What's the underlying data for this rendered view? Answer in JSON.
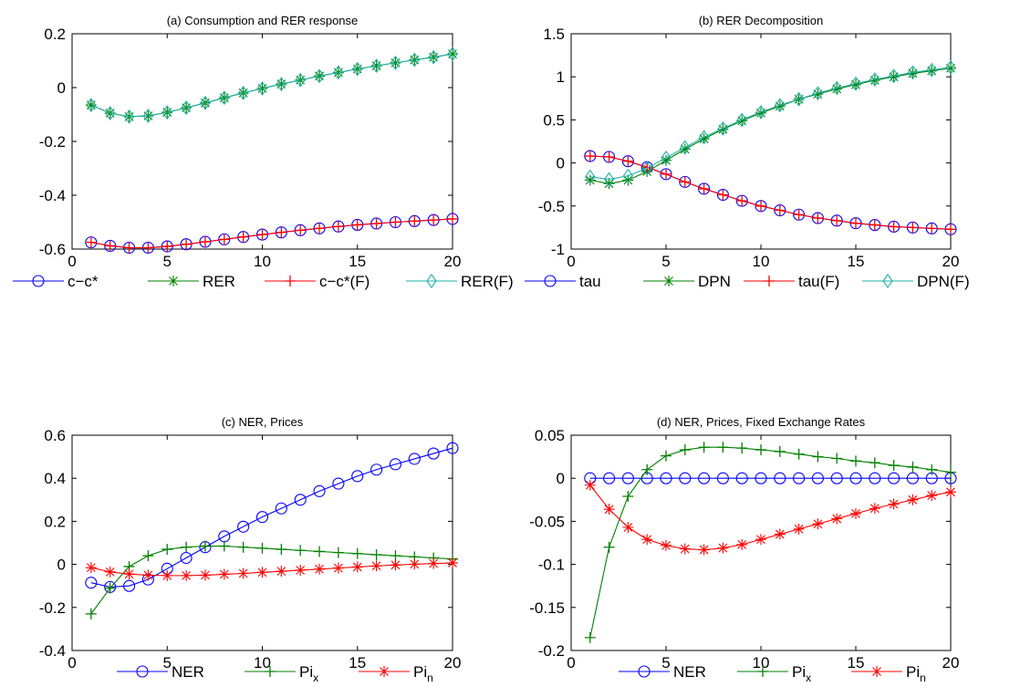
{
  "chart_data": [
    {
      "id": "a",
      "type": "line",
      "title": "(a) Consumption and RER response",
      "xlim": [
        0,
        20
      ],
      "ylim": [
        -0.6,
        0.2
      ],
      "xticks": [
        0,
        5,
        10,
        15,
        20
      ],
      "yticks": [
        -0.6,
        -0.4,
        -0.2,
        0,
        0.2
      ],
      "xtick_labels": [
        "0",
        "5",
        "10",
        "15",
        "20"
      ],
      "ytick_labels": [
        "-0.6",
        "-0.4",
        "-0.2",
        "0",
        "0.2"
      ],
      "x": [
        1,
        2,
        3,
        4,
        5,
        6,
        7,
        8,
        9,
        10,
        11,
        12,
        13,
        14,
        15,
        16,
        17,
        18,
        19,
        20
      ],
      "series": [
        {
          "name": "c−c*",
          "color": "#0000ff",
          "marker": "circle",
          "values": [
            -0.575,
            -0.588,
            -0.595,
            -0.595,
            -0.59,
            -0.582,
            -0.573,
            -0.564,
            -0.555,
            -0.546,
            -0.538,
            -0.53,
            -0.523,
            -0.516,
            -0.51,
            -0.505,
            -0.5,
            -0.496,
            -0.492,
            -0.488
          ]
        },
        {
          "name": "RER",
          "color": "#008000",
          "marker": "star",
          "values": [
            -0.065,
            -0.095,
            -0.108,
            -0.105,
            -0.092,
            -0.075,
            -0.057,
            -0.038,
            -0.02,
            -0.003,
            0.013,
            0.028,
            0.043,
            0.056,
            0.069,
            0.081,
            0.092,
            0.103,
            0.113,
            0.125
          ]
        },
        {
          "name": "c−c*(F)",
          "color": "#ff0000",
          "marker": "plus",
          "values": [
            -0.575,
            -0.588,
            -0.595,
            -0.595,
            -0.59,
            -0.582,
            -0.573,
            -0.564,
            -0.555,
            -0.546,
            -0.538,
            -0.53,
            -0.523,
            -0.516,
            -0.51,
            -0.505,
            -0.5,
            -0.496,
            -0.492,
            -0.488
          ]
        },
        {
          "name": "RER(F)",
          "color": "#20b2aa",
          "marker": "diamond",
          "values": [
            -0.065,
            -0.095,
            -0.108,
            -0.105,
            -0.092,
            -0.075,
            -0.057,
            -0.038,
            -0.02,
            -0.003,
            0.013,
            0.028,
            0.043,
            0.056,
            0.069,
            0.081,
            0.092,
            0.103,
            0.113,
            0.125
          ]
        }
      ],
      "legend_placement": "bottom"
    },
    {
      "id": "b",
      "type": "line",
      "title": "(b) RER Decomposition",
      "xlim": [
        0,
        20
      ],
      "ylim": [
        -1,
        1.5
      ],
      "xticks": [
        0,
        5,
        10,
        15,
        20
      ],
      "yticks": [
        -1,
        -0.5,
        0,
        0.5,
        1,
        1.5
      ],
      "xtick_labels": [
        "0",
        "5",
        "10",
        "15",
        "20"
      ],
      "ytick_labels": [
        "-1",
        "-0.5",
        "0",
        "0.5",
        "1",
        "1.5"
      ],
      "x": [
        1,
        2,
        3,
        4,
        5,
        6,
        7,
        8,
        9,
        10,
        11,
        12,
        13,
        14,
        15,
        16,
        17,
        18,
        19,
        20
      ],
      "series": [
        {
          "name": "tau",
          "color": "#0000ff",
          "marker": "circle",
          "values": [
            0.08,
            0.07,
            0.02,
            -0.05,
            -0.13,
            -0.22,
            -0.3,
            -0.37,
            -0.44,
            -0.5,
            -0.55,
            -0.6,
            -0.64,
            -0.67,
            -0.7,
            -0.72,
            -0.74,
            -0.75,
            -0.76,
            -0.77
          ]
        },
        {
          "name": "DPN",
          "color": "#008000",
          "marker": "star",
          "values": [
            -0.2,
            -0.24,
            -0.2,
            -0.1,
            0.03,
            0.16,
            0.28,
            0.39,
            0.49,
            0.58,
            0.66,
            0.74,
            0.8,
            0.86,
            0.91,
            0.96,
            1.0,
            1.04,
            1.07,
            1.1
          ]
        },
        {
          "name": "tau(F)",
          "color": "#ff0000",
          "marker": "plus",
          "values": [
            0.08,
            0.07,
            0.02,
            -0.05,
            -0.13,
            -0.22,
            -0.3,
            -0.37,
            -0.44,
            -0.5,
            -0.55,
            -0.6,
            -0.64,
            -0.67,
            -0.7,
            -0.72,
            -0.74,
            -0.75,
            -0.76,
            -0.77
          ]
        },
        {
          "name": "DPN(F)",
          "color": "#20b2aa",
          "marker": "diamond",
          "values": [
            -0.16,
            -0.19,
            -0.15,
            -0.06,
            0.06,
            0.18,
            0.3,
            0.4,
            0.5,
            0.59,
            0.67,
            0.74,
            0.81,
            0.87,
            0.92,
            0.97,
            1.01,
            1.05,
            1.08,
            1.11
          ]
        }
      ],
      "legend_placement": "bottom"
    },
    {
      "id": "c",
      "type": "line",
      "title": "(c) NER, Prices",
      "xlim": [
        0,
        20
      ],
      "ylim": [
        -0.4,
        0.6
      ],
      "xticks": [
        0,
        5,
        10,
        15,
        20
      ],
      "yticks": [
        -0.4,
        -0.2,
        0,
        0.2,
        0.4,
        0.6
      ],
      "xtick_labels": [
        "0",
        "5",
        "10",
        "15",
        "20"
      ],
      "ytick_labels": [
        "-0.4",
        "-0.2",
        "0",
        "0.2",
        "0.4",
        "0.6"
      ],
      "x": [
        1,
        2,
        3,
        4,
        5,
        6,
        7,
        8,
        9,
        10,
        11,
        12,
        13,
        14,
        15,
        16,
        17,
        18,
        19,
        20
      ],
      "series": [
        {
          "name": "NER",
          "color": "#0000ff",
          "marker": "circle",
          "values": [
            -0.085,
            -0.105,
            -0.1,
            -0.07,
            -0.02,
            0.03,
            0.08,
            0.13,
            0.175,
            0.22,
            0.26,
            0.3,
            0.34,
            0.375,
            0.41,
            0.44,
            0.465,
            0.49,
            0.515,
            0.54
          ]
        },
        {
          "name": "Pi",
          "sub": "x",
          "color": "#008000",
          "marker": "plus",
          "values": [
            -0.23,
            -0.11,
            -0.01,
            0.04,
            0.07,
            0.08,
            0.085,
            0.085,
            0.08,
            0.075,
            0.07,
            0.065,
            0.06,
            0.055,
            0.05,
            0.045,
            0.04,
            0.035,
            0.03,
            0.025
          ]
        },
        {
          "name": "Pi",
          "sub": "n",
          "color": "#ff0000",
          "marker": "star",
          "values": [
            -0.015,
            -0.035,
            -0.045,
            -0.05,
            -0.052,
            -0.052,
            -0.05,
            -0.046,
            -0.042,
            -0.037,
            -0.032,
            -0.027,
            -0.022,
            -0.017,
            -0.012,
            -0.007,
            -0.003,
            0.001,
            0.004,
            0.007
          ]
        }
      ],
      "legend_placement": "bottom"
    },
    {
      "id": "d",
      "type": "line",
      "title": "(d) NER, Prices, Fixed Exchange Rates",
      "xlim": [
        0,
        20
      ],
      "ylim": [
        -0.2,
        0.05
      ],
      "xticks": [
        0,
        5,
        10,
        15,
        20
      ],
      "yticks": [
        -0.2,
        -0.15,
        -0.1,
        -0.05,
        0,
        0.05
      ],
      "xtick_labels": [
        "0",
        "5",
        "10",
        "15",
        "20"
      ],
      "ytick_labels": [
        "-0.2",
        "-0.15",
        "-0.1",
        "-0.05",
        "0",
        "0.05"
      ],
      "x": [
        1,
        2,
        3,
        4,
        5,
        6,
        7,
        8,
        9,
        10,
        11,
        12,
        13,
        14,
        15,
        16,
        17,
        18,
        19,
        20
      ],
      "series": [
        {
          "name": "NER",
          "color": "#0000ff",
          "marker": "circle",
          "values": [
            0,
            0,
            0,
            0,
            0,
            0,
            0,
            0,
            0,
            0,
            0,
            0,
            0,
            0,
            0,
            0,
            0,
            0,
            0,
            0
          ]
        },
        {
          "name": "Pi",
          "sub": "x",
          "color": "#008000",
          "marker": "plus",
          "values": [
            -0.185,
            -0.08,
            -0.021,
            0.01,
            0.026,
            0.033,
            0.036,
            0.036,
            0.035,
            0.033,
            0.031,
            0.028,
            0.025,
            0.023,
            0.02,
            0.018,
            0.015,
            0.013,
            0.01,
            0.007
          ]
        },
        {
          "name": "Pi",
          "sub": "n",
          "color": "#ff0000",
          "marker": "star",
          "values": [
            -0.008,
            -0.036,
            -0.057,
            -0.071,
            -0.078,
            -0.082,
            -0.083,
            -0.081,
            -0.077,
            -0.071,
            -0.065,
            -0.059,
            -0.053,
            -0.047,
            -0.041,
            -0.035,
            -0.03,
            -0.025,
            -0.02,
            -0.016
          ]
        }
      ],
      "legend_placement": "bottom"
    }
  ]
}
